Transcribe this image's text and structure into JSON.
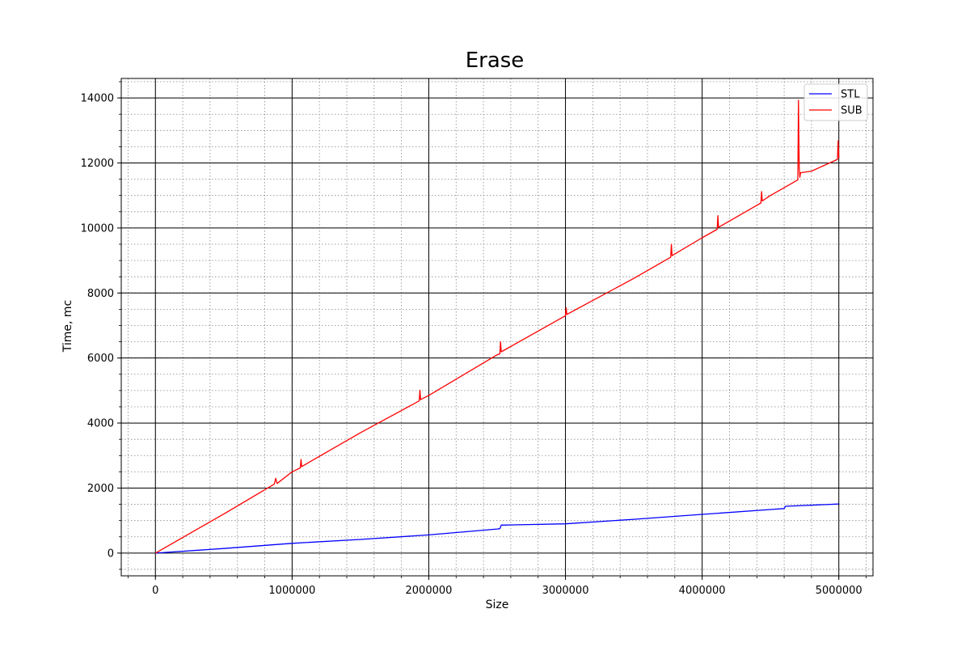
{
  "chart_data": {
    "type": "line",
    "title": "Erase",
    "xlabel": "Size",
    "ylabel": "Time, mc",
    "xlim": [
      -250000,
      5250000
    ],
    "ylim": [
      -700,
      14600
    ],
    "x_ticks": [
      0,
      1000000,
      2000000,
      3000000,
      4000000,
      5000000
    ],
    "x_tick_labels": [
      "0",
      "1000000",
      "2000000",
      "3000000",
      "4000000",
      "5000000"
    ],
    "y_ticks": [
      0,
      2000,
      4000,
      6000,
      8000,
      10000,
      12000,
      14000
    ],
    "y_tick_labels": [
      "0",
      "2000",
      "4000",
      "6000",
      "8000",
      "10000",
      "12000",
      "14000"
    ],
    "grid": true,
    "minor_grid": true,
    "legend_position": "top-right",
    "series": [
      {
        "name": "STL",
        "color": "#0000ff",
        "x": [
          0,
          500000,
          1000000,
          1500000,
          2000000,
          2500000,
          2520000,
          2530000,
          3000000,
          3500000,
          4000000,
          4500000,
          4600000,
          4610000,
          5000000
        ],
        "y": [
          0,
          140,
          300,
          420,
          560,
          740,
          750,
          860,
          900,
          1040,
          1190,
          1340,
          1370,
          1440,
          1510
        ]
      },
      {
        "name": "SUB",
        "color": "#ff0000",
        "x": [
          0,
          500000,
          870000,
          880000,
          890000,
          1000000,
          1060000,
          1065000,
          1070000,
          1500000,
          1930000,
          1935000,
          1940000,
          2000000,
          2500000,
          2520000,
          2525000,
          2530000,
          3000000,
          3005000,
          3010000,
          3500000,
          3770000,
          3775000,
          3780000,
          4000000,
          4110000,
          4115000,
          4120000,
          4430000,
          4435000,
          4440000,
          4500000,
          4700000,
          4705000,
          4710000,
          4715000,
          4720000,
          4800000,
          4990000,
          4995000,
          5000000
        ],
        "y": [
          0,
          1200,
          2120,
          2300,
          2140,
          2500,
          2620,
          2880,
          2660,
          3700,
          4680,
          5010,
          4720,
          4850,
          6100,
          6130,
          6500,
          6190,
          7300,
          7550,
          7340,
          8450,
          9100,
          9500,
          9150,
          9700,
          9960,
          10380,
          10020,
          10770,
          11120,
          10830,
          11000,
          11480,
          13930,
          11900,
          11560,
          11700,
          11750,
          12110,
          12680,
          12150
        ]
      }
    ]
  }
}
